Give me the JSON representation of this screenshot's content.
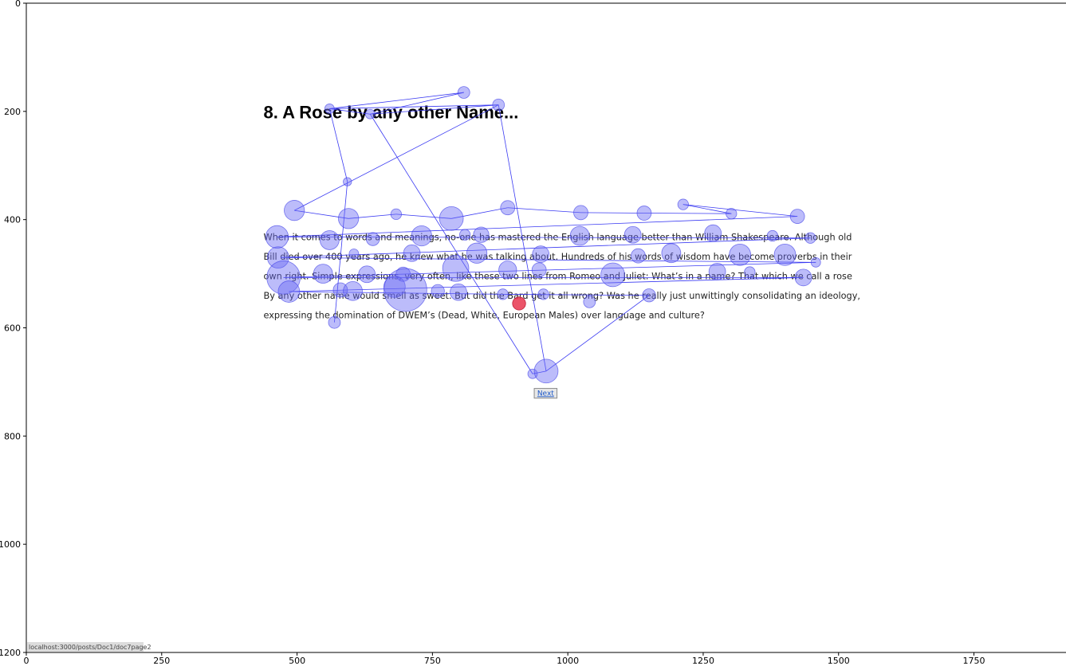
{
  "chart_data": {
    "type": "scatter",
    "title": "",
    "xlabel": "",
    "ylabel": "",
    "xlim": [
      0,
      1920
    ],
    "ylim": [
      1200,
      0
    ],
    "x_ticks": [
      0,
      250,
      500,
      750,
      1000,
      1250,
      1500,
      1750
    ],
    "y_ticks": [
      0,
      200,
      400,
      600,
      800,
      1000,
      1200
    ],
    "grid": false,
    "legend": "none",
    "stimulus": {
      "title": "8. A Rose by any other Name...",
      "lines": [
        "When it comes to words and meanings, no-one has mastered the English language better than William Shakespeare. Although old",
        "Bill died over 400 years ago, he knew what he was talking about. Hundreds of his words of wisdom have become proverbs in their",
        "own right. Simple expressions, very often, like these two lines from Romeo and Juliet: What’s in a name? That which we call a rose",
        "By any other name would smell as sweet. But did the Bard get it all wrong? Was he really just unwittingly consolidating an ideology,",
        "expressing the domination of DWEM’s (Dead, White, European Males) over language and culture?"
      ],
      "next_label": "Next",
      "status_url": "localhost:3000/posts/Doc1/doc7page2"
    },
    "series": [
      {
        "type": "fixations",
        "color": "#6b6bf5",
        "points": [
          {
            "x": 560,
            "y": 195,
            "d": 8
          },
          {
            "x": 808,
            "y": 165,
            "d": 10
          },
          {
            "x": 635,
            "y": 205,
            "d": 8
          },
          {
            "x": 872,
            "y": 188,
            "d": 10
          },
          {
            "x": 593,
            "y": 330,
            "d": 7
          },
          {
            "x": 495,
            "y": 383,
            "d": 17
          },
          {
            "x": 595,
            "y": 398,
            "d": 17
          },
          {
            "x": 683,
            "y": 390,
            "d": 9
          },
          {
            "x": 785,
            "y": 398,
            "d": 20
          },
          {
            "x": 889,
            "y": 378,
            "d": 12
          },
          {
            "x": 1024,
            "y": 387,
            "d": 12
          },
          {
            "x": 1141,
            "y": 388,
            "d": 12
          },
          {
            "x": 1213,
            "y": 372,
            "d": 9
          },
          {
            "x": 1302,
            "y": 389,
            "d": 9
          },
          {
            "x": 1424,
            "y": 394,
            "d": 12
          },
          {
            "x": 463,
            "y": 432,
            "d": 19
          },
          {
            "x": 560,
            "y": 438,
            "d": 16
          },
          {
            "x": 640,
            "y": 436,
            "d": 11
          },
          {
            "x": 730,
            "y": 430,
            "d": 17
          },
          {
            "x": 810,
            "y": 428,
            "d": 9
          },
          {
            "x": 840,
            "y": 428,
            "d": 13
          },
          {
            "x": 1022,
            "y": 430,
            "d": 16
          },
          {
            "x": 1120,
            "y": 428,
            "d": 14
          },
          {
            "x": 1268,
            "y": 425,
            "d": 14
          },
          {
            "x": 1378,
            "y": 430,
            "d": 9
          },
          {
            "x": 1448,
            "y": 434,
            "d": 9
          },
          {
            "x": 465,
            "y": 470,
            "d": 18
          },
          {
            "x": 605,
            "y": 463,
            "d": 8
          },
          {
            "x": 712,
            "y": 462,
            "d": 14
          },
          {
            "x": 832,
            "y": 462,
            "d": 17
          },
          {
            "x": 950,
            "y": 464,
            "d": 14
          },
          {
            "x": 1130,
            "y": 467,
            "d": 12
          },
          {
            "x": 1191,
            "y": 462,
            "d": 16
          },
          {
            "x": 1318,
            "y": 465,
            "d": 18
          },
          {
            "x": 1401,
            "y": 465,
            "d": 18
          },
          {
            "x": 1458,
            "y": 479,
            "d": 8
          },
          {
            "x": 475,
            "y": 507,
            "d": 28
          },
          {
            "x": 548,
            "y": 500,
            "d": 16
          },
          {
            "x": 629,
            "y": 501,
            "d": 14
          },
          {
            "x": 696,
            "y": 501,
            "d": 12
          },
          {
            "x": 793,
            "y": 490,
            "d": 22
          },
          {
            "x": 889,
            "y": 493,
            "d": 15
          },
          {
            "x": 947,
            "y": 493,
            "d": 12
          },
          {
            "x": 1083,
            "y": 502,
            "d": 20
          },
          {
            "x": 1276,
            "y": 496,
            "d": 14
          },
          {
            "x": 1336,
            "y": 497,
            "d": 9
          },
          {
            "x": 1435,
            "y": 507,
            "d": 14
          },
          {
            "x": 485,
            "y": 533,
            "d": 18
          },
          {
            "x": 580,
            "y": 530,
            "d": 12
          },
          {
            "x": 603,
            "y": 532,
            "d": 16
          },
          {
            "x": 680,
            "y": 524,
            "d": 18
          },
          {
            "x": 700,
            "y": 530,
            "d": 36
          },
          {
            "x": 760,
            "y": 532,
            "d": 11
          },
          {
            "x": 798,
            "y": 534,
            "d": 14
          },
          {
            "x": 880,
            "y": 538,
            "d": 9
          },
          {
            "x": 955,
            "y": 538,
            "d": 9
          },
          {
            "x": 1040,
            "y": 552,
            "d": 10
          },
          {
            "x": 1150,
            "y": 540,
            "d": 11
          },
          {
            "x": 569,
            "y": 590,
            "d": 10
          },
          {
            "x": 935,
            "y": 685,
            "d": 8
          },
          {
            "x": 960,
            "y": 680,
            "d": 20
          }
        ],
        "path": [
          [
            569,
            590
          ],
          [
            593,
            330
          ],
          [
            560,
            195
          ],
          [
            808,
            165
          ],
          [
            635,
            205
          ],
          [
            872,
            188
          ],
          [
            960,
            680
          ],
          [
            935,
            685
          ],
          [
            635,
            205
          ],
          [
            560,
            195
          ],
          [
            872,
            188
          ],
          [
            495,
            383
          ],
          [
            595,
            398
          ],
          [
            683,
            390
          ],
          [
            785,
            398
          ],
          [
            889,
            378
          ],
          [
            1024,
            387
          ],
          [
            1141,
            388
          ],
          [
            1302,
            389
          ],
          [
            1213,
            372
          ],
          [
            1424,
            394
          ],
          [
            463,
            432
          ],
          [
            1448,
            434
          ],
          [
            470,
            470
          ],
          [
            1458,
            479
          ],
          [
            475,
            507
          ],
          [
            1435,
            507
          ],
          [
            485,
            533
          ],
          [
            880,
            538
          ],
          [
            1150,
            540
          ],
          [
            960,
            680
          ]
        ]
      },
      {
        "type": "current-fixation",
        "color": "#e8364f",
        "points": [
          {
            "x": 910,
            "y": 555,
            "d": 11
          }
        ]
      }
    ]
  }
}
